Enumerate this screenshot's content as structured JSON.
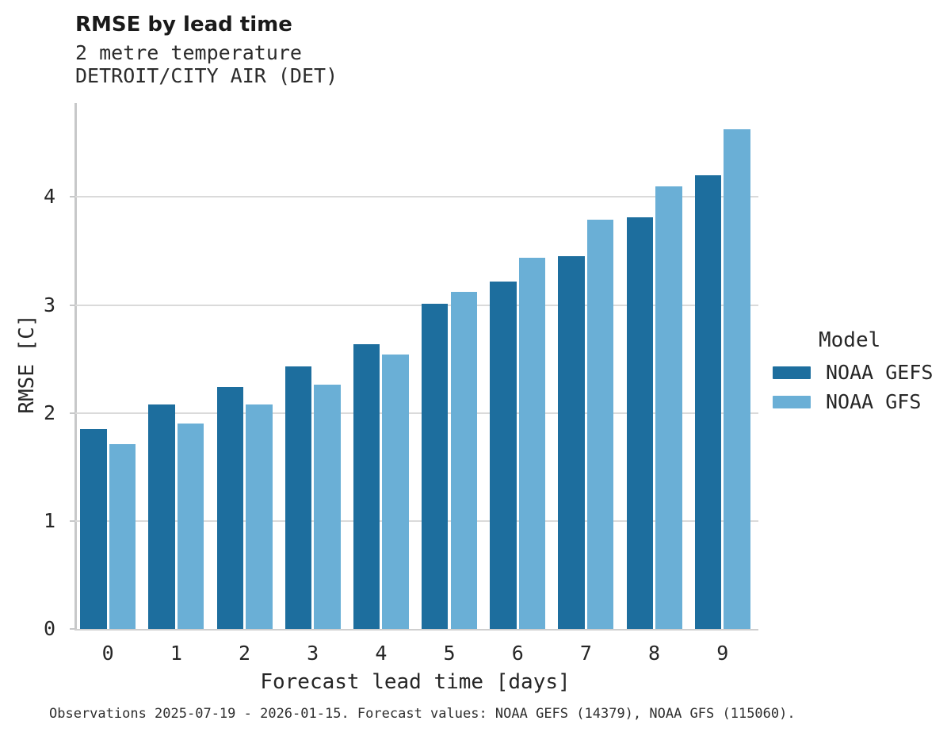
{
  "header": {
    "title": "RMSE by lead time",
    "subtitle_line1": "2 metre temperature",
    "subtitle_line2": "DETROIT/CITY AIR (DET)"
  },
  "axes": {
    "xlabel": "Forecast lead time [days]",
    "ylabel": "RMSE [C]"
  },
  "legend": {
    "title": "Model",
    "entries": [
      {
        "label": "NOAA GEFS",
        "color": "#1d6e9e"
      },
      {
        "label": "NOAA GFS",
        "color": "#6aafd6"
      }
    ]
  },
  "footer": {
    "caption": "Observations 2025-07-19 - 2026-01-15. Forecast values: NOAA GEFS (14379), NOAA GFS (115060)."
  },
  "chart_data": {
    "type": "bar",
    "title": "RMSE by lead time",
    "subtitle": [
      "2 metre temperature",
      "DETROIT/CITY AIR (DET)"
    ],
    "categories": [
      0,
      1,
      2,
      3,
      4,
      5,
      6,
      7,
      8,
      9
    ],
    "series": [
      {
        "name": "NOAA GEFS",
        "color": "#1d6e9e",
        "values": [
          1.85,
          2.08,
          2.24,
          2.43,
          2.64,
          3.01,
          3.22,
          3.45,
          3.81,
          4.2
        ]
      },
      {
        "name": "NOAA GFS",
        "color": "#6aafd6",
        "values": [
          1.71,
          1.9,
          2.08,
          2.26,
          2.54,
          3.12,
          3.44,
          3.79,
          4.1,
          4.63
        ]
      }
    ],
    "xlabel": "Forecast lead time [days]",
    "ylabel": "RMSE [C]",
    "ylim": [
      0,
      4.87
    ],
    "yticks": [
      0,
      1,
      2,
      3,
      4
    ],
    "grid": "horizontal",
    "legend_title": "Model",
    "legend_position": "right"
  },
  "colors": {
    "series_dark": "#1d6e9e",
    "series_light": "#6aafd6",
    "gridline": "#dadada",
    "spine": "#c7c8c9",
    "text": "#262626"
  }
}
